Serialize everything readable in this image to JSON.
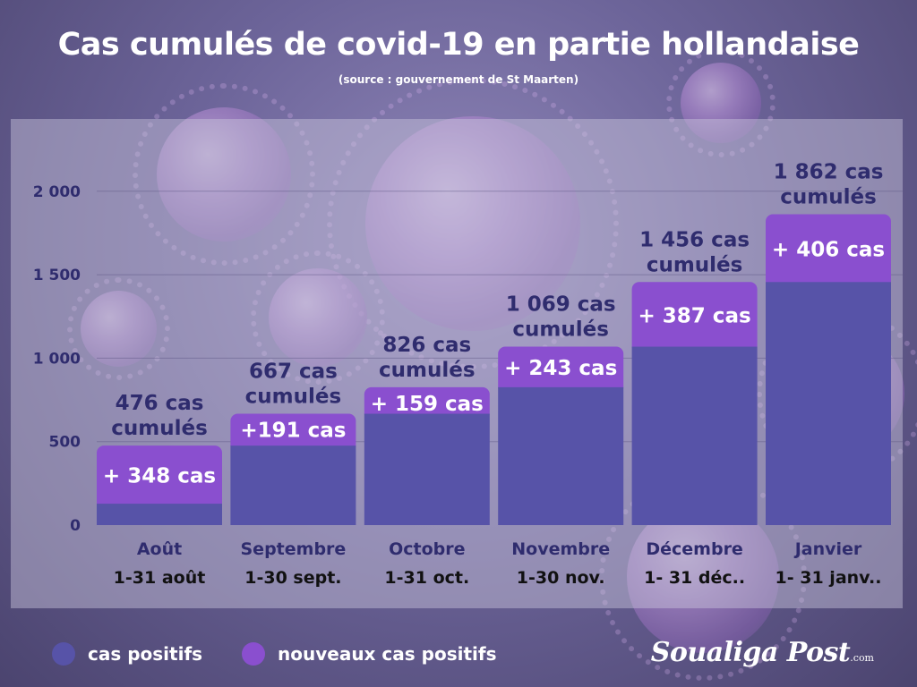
{
  "title": "Cas cumulés de covid-19 en partie hollandaise",
  "subtitle": "(source : gouvernement de St Maarten)",
  "colors": {
    "positifs": "#5753a8",
    "nouveaux": "#8a4fcf",
    "axis_text": "#2f2c6e"
  },
  "legend": {
    "positifs": "cas positifs",
    "nouveaux": "nouveaux cas positifs"
  },
  "brand": {
    "name": "Soualiga Post",
    "suffix": ".com"
  },
  "chart_data": {
    "type": "bar",
    "title": "Cas cumulés de covid-19 en partie hollandaise",
    "ylim": [
      0,
      2250
    ],
    "yticks": [
      0,
      500,
      1000,
      1500,
      2000
    ],
    "ytick_labels": [
      "0",
      "500",
      "1 000",
      "1 500",
      "2 000"
    ],
    "grid": true,
    "categories": [
      "Août",
      "Septembre",
      "Octobre",
      "Novembre",
      "Décembre",
      "Janvier"
    ],
    "periods": [
      "1-31 août",
      "1-30 sept.",
      "1-31 oct.",
      "1-30 nov.",
      "1- 31 déc..",
      "1- 31 janv.."
    ],
    "series": [
      {
        "name": "cas positifs",
        "values": [
          128,
          476,
          667,
          826,
          1069,
          1456
        ]
      },
      {
        "name": "nouveaux cas positifs",
        "values": [
          348,
          191,
          159,
          243,
          387,
          406
        ]
      }
    ],
    "totals": [
      476,
      667,
      826,
      1069,
      1456,
      1862
    ],
    "new_labels": [
      "+ 348 cas",
      "+191 cas",
      "+ 159 cas",
      "+ 243 cas",
      "+ 387 cas",
      "+ 406 cas"
    ],
    "total_labels": [
      [
        "476 cas",
        "cumulés"
      ],
      [
        "667 cas",
        "cumulés"
      ],
      [
        "826 cas",
        "cumulés"
      ],
      [
        "1 069 cas",
        "cumulés"
      ],
      [
        "1 456 cas",
        "cumulés"
      ],
      [
        "1 862 cas",
        "cumulés"
      ]
    ]
  }
}
